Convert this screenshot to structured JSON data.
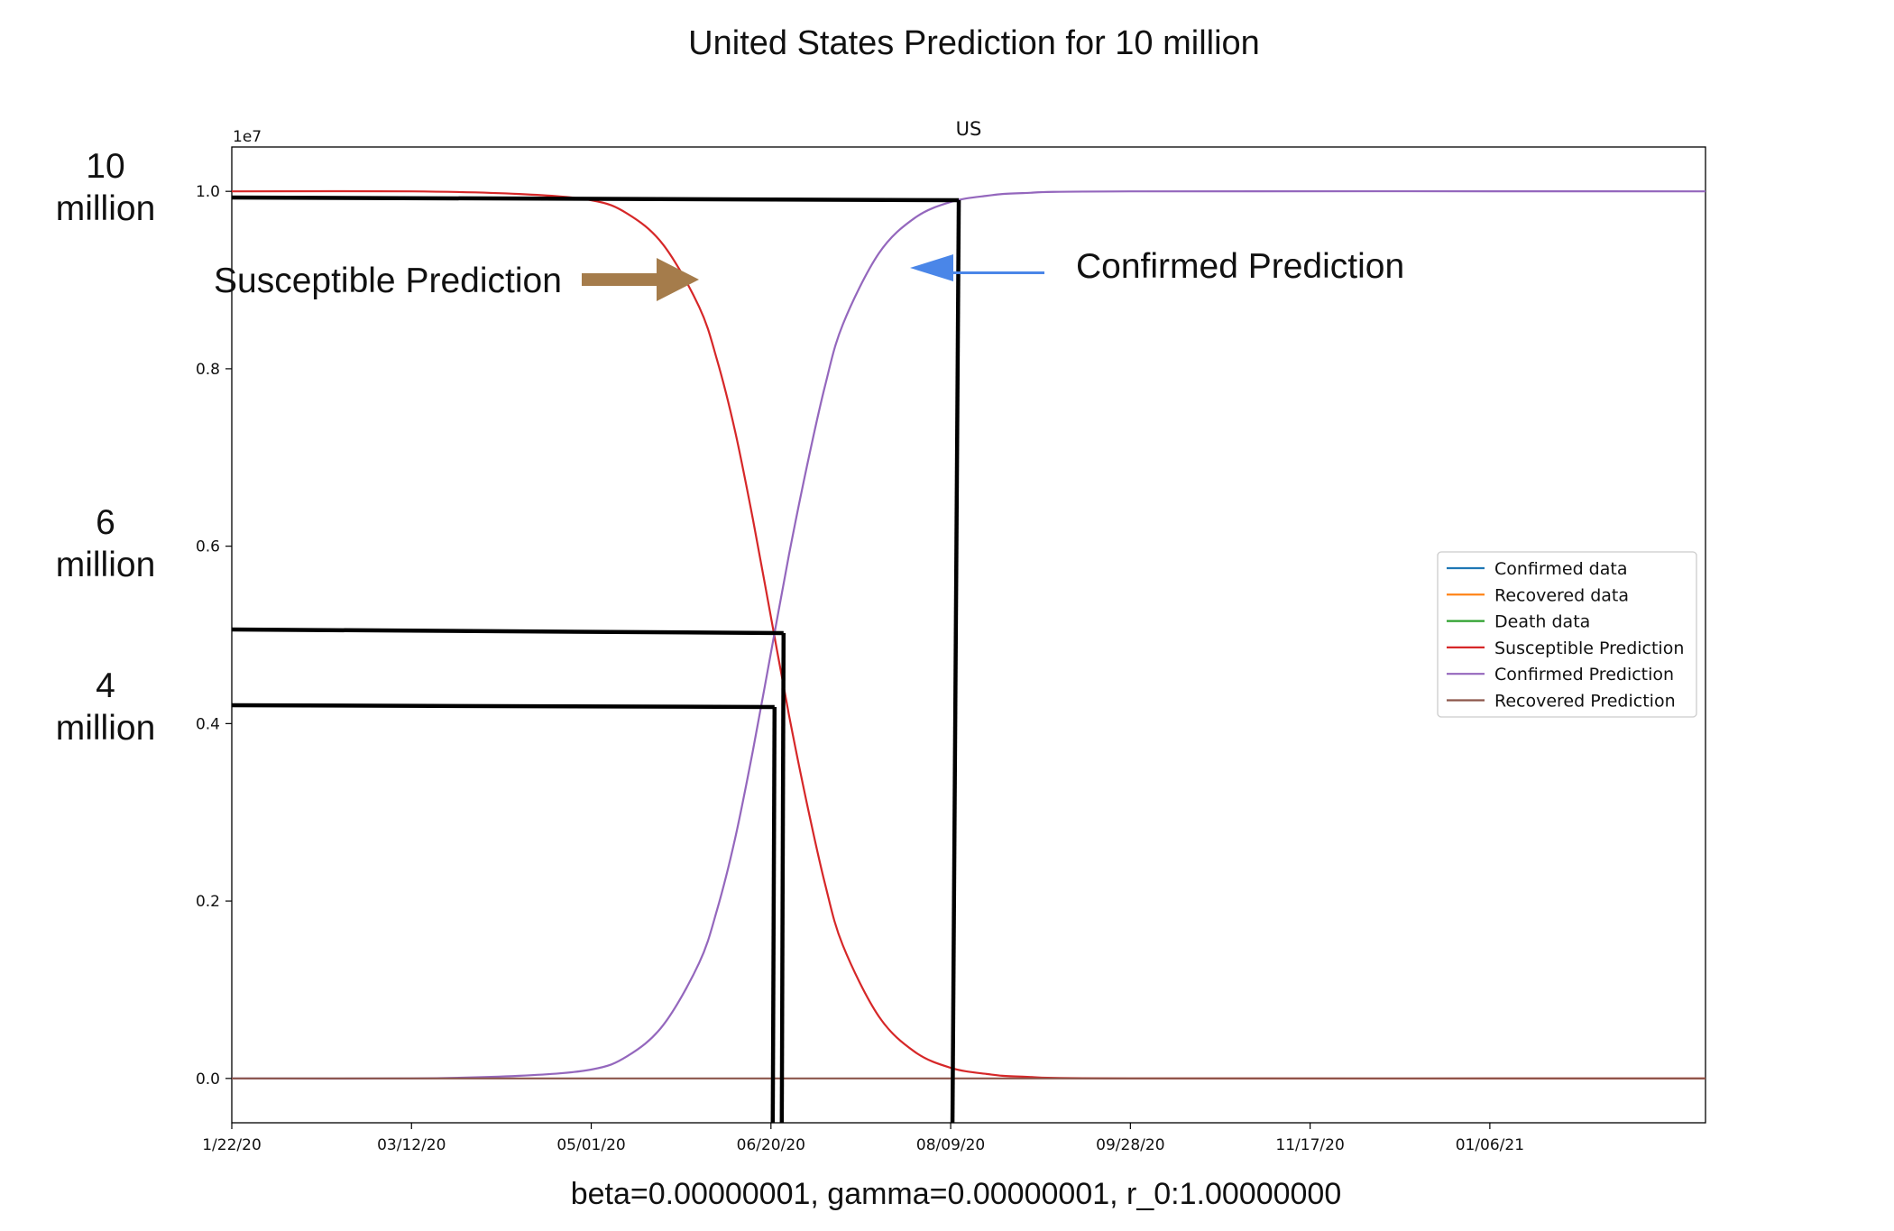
{
  "figure_title": "United States Prediction for 10 million",
  "parameters_text": "beta=0.00000001, gamma=0.00000001, r_0:1.00000000",
  "colors": {
    "confirmed_data": "#1f77b4",
    "recovered_data": "#ff7f0e",
    "death_data": "#2ca02c",
    "susceptible_prediction": "#d62728",
    "confirmed_prediction": "#9467bd",
    "recovered_prediction": "#8c564b",
    "annotation_lines": "#000000",
    "susceptible_arrow": "#a57c4b",
    "confirmed_arrow": "#4a86e8"
  },
  "chart_data": {
    "type": "line",
    "title": "US",
    "xlabel": "",
    "ylabel": "",
    "y_offset_label": "1e7",
    "x_start_date": "2020-01-22",
    "xlim": [
      "2020-01-22",
      "2021-03-07"
    ],
    "ylim": [
      -0.05,
      1.05
    ],
    "x_tick_labels": [
      "1/22/20",
      "03/12/20",
      "05/01/20",
      "06/20/20",
      "08/09/20",
      "09/28/20",
      "11/17/20",
      "01/06/21"
    ],
    "x_tick_dates": [
      "2020-01-22",
      "2020-03-12",
      "2020-05-01",
      "2020-06-20",
      "2020-08-09",
      "2020-09-28",
      "2020-11-17",
      "2021-01-06"
    ],
    "y_tick_labels": [
      "0.0",
      "0.2",
      "0.4",
      "0.6",
      "0.8",
      "1.0"
    ],
    "y_tick_values": [
      0.0,
      0.2,
      0.4,
      0.6,
      0.8,
      1.0
    ],
    "grid": false,
    "legend_position": "center-right",
    "legend": [
      "Confirmed data",
      "Recovered data",
      "Death data",
      "Susceptible Prediction",
      "Confirmed Prediction",
      "Recovered Prediction"
    ],
    "series": [
      {
        "name": "Susceptible Prediction",
        "x": [
          "2020-01-22",
          "2020-03-12",
          "2020-04-11",
          "2020-05-01",
          "2020-05-11",
          "2020-05-21",
          "2020-05-31",
          "2020-06-05",
          "2020-06-10",
          "2020-06-15",
          "2020-06-20",
          "2020-06-25",
          "2020-06-30",
          "2020-07-05",
          "2020-07-10",
          "2020-07-20",
          "2020-07-30",
          "2020-08-09",
          "2020-08-19",
          "2020-08-29",
          "2020-09-28",
          "2021-03-07"
        ],
        "y": [
          1.0,
          1.0,
          0.997,
          0.99,
          0.975,
          0.94,
          0.87,
          0.81,
          0.73,
          0.63,
          0.52,
          0.41,
          0.31,
          0.22,
          0.15,
          0.07,
          0.03,
          0.012,
          0.005,
          0.002,
          0.0,
          0.0
        ]
      },
      {
        "name": "Confirmed Prediction",
        "x": [
          "2020-01-22",
          "2020-03-12",
          "2020-04-11",
          "2020-05-01",
          "2020-05-11",
          "2020-05-21",
          "2020-05-31",
          "2020-06-05",
          "2020-06-10",
          "2020-06-15",
          "2020-06-20",
          "2020-06-25",
          "2020-06-30",
          "2020-07-05",
          "2020-07-10",
          "2020-07-20",
          "2020-07-30",
          "2020-08-09",
          "2020-08-19",
          "2020-08-29",
          "2020-09-28",
          "2021-03-07"
        ],
        "y": [
          0.0,
          0.0,
          0.003,
          0.01,
          0.025,
          0.06,
          0.13,
          0.19,
          0.27,
          0.37,
          0.48,
          0.59,
          0.69,
          0.78,
          0.85,
          0.93,
          0.97,
          0.988,
          0.995,
          0.998,
          1.0,
          1.0
        ]
      },
      {
        "name": "Recovered Prediction",
        "x": [
          "2020-01-22",
          "2021-03-07"
        ],
        "y": [
          0.0,
          0.0
        ]
      }
    ],
    "annotations": [
      {
        "name": "Susceptible Prediction",
        "text": "Susceptible Prediction",
        "y_start_text": "10 million",
        "marker_y": 0.99,
        "marker_x": "2020-08-09"
      },
      {
        "name": "Confirmed Prediction",
        "text": "Confirmed Prediction"
      }
    ],
    "side_labels": [
      {
        "line1": "10",
        "line2": "million",
        "value": 1.0
      },
      {
        "line1": "6",
        "line2": "million",
        "value": 0.6
      },
      {
        "line1": "4",
        "line2": "million",
        "value": 0.4
      }
    ]
  }
}
